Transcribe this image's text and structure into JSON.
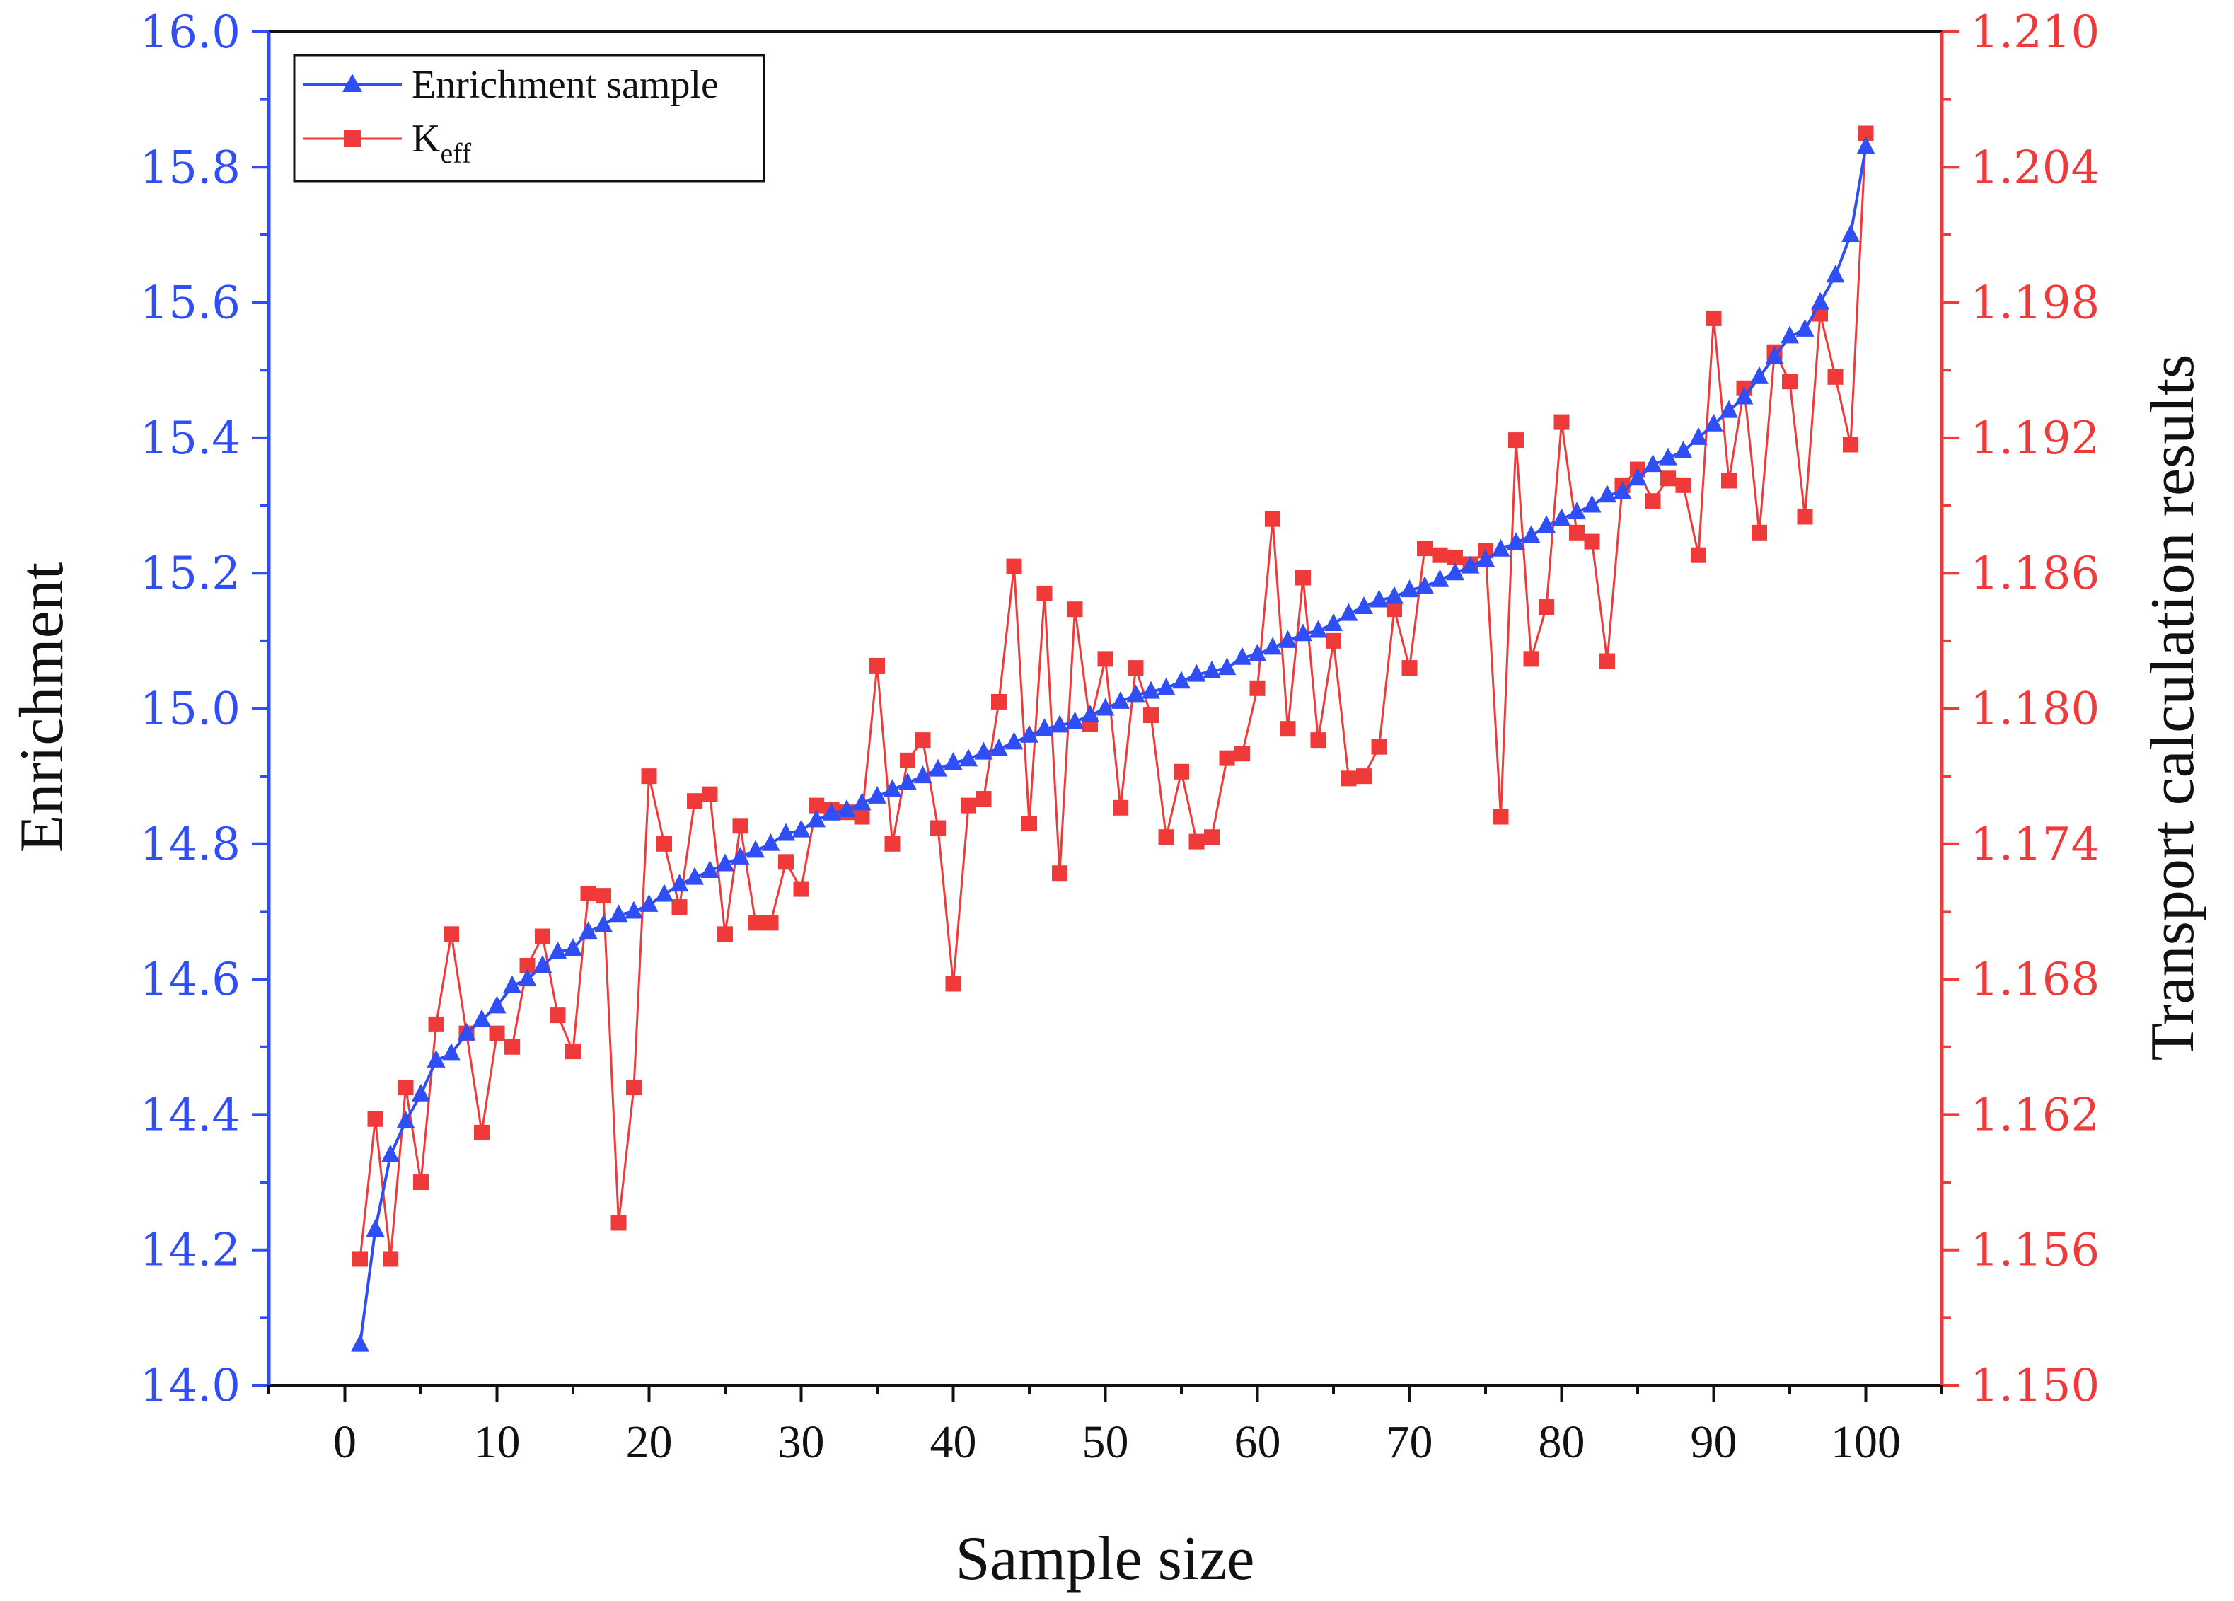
{
  "chart_data": {
    "type": "line",
    "xlabel": "Sample size",
    "ylabel_left": "Enrichment",
    "ylabel_right": "Transport calculation results",
    "xlim": [
      -5,
      105
    ],
    "ylim_left": [
      14.0,
      16.0
    ],
    "ylim_right": [
      1.15,
      1.21
    ],
    "x_ticks": [
      0,
      10,
      20,
      30,
      40,
      50,
      60,
      70,
      80,
      90,
      100
    ],
    "x_tick_labels": [
      "0",
      "10",
      "20",
      "30",
      "40",
      "50",
      "60",
      "70",
      "80",
      "90",
      "100"
    ],
    "y_left_ticks": [
      14.0,
      14.2,
      14.4,
      14.6,
      14.8,
      15.0,
      15.2,
      15.4,
      15.6,
      15.8,
      16.0
    ],
    "y_left_tick_labels": [
      "14.0",
      "14.2",
      "14.4",
      "14.6",
      "14.8",
      "15.0",
      "15.2",
      "15.4",
      "15.6",
      "15.8",
      "16.0"
    ],
    "y_right_ticks": [
      1.15,
      1.156,
      1.162,
      1.168,
      1.174,
      1.18,
      1.186,
      1.192,
      1.198,
      1.204,
      1.21
    ],
    "y_right_tick_labels": [
      "1.150",
      "1.156",
      "1.162",
      "1.168",
      "1.174",
      "1.180",
      "1.186",
      "1.192",
      "1.198",
      "1.204",
      "1.210"
    ],
    "legend_position": "top-left",
    "legend": [
      {
        "label": "Enrichment sample",
        "sub": ""
      },
      {
        "label": "K",
        "sub": "eff"
      }
    ],
    "series": [
      {
        "name": "Enrichment sample",
        "axis": "left",
        "color": "#2f4ef5",
        "marker": "triangle",
        "x": [
          1,
          2,
          3,
          4,
          5,
          6,
          7,
          8,
          9,
          10,
          11,
          12,
          13,
          14,
          15,
          16,
          17,
          18,
          19,
          20,
          21,
          22,
          23,
          24,
          25,
          26,
          27,
          28,
          29,
          30,
          31,
          32,
          33,
          34,
          35,
          36,
          37,
          38,
          39,
          40,
          41,
          42,
          43,
          44,
          45,
          46,
          47,
          48,
          49,
          50,
          51,
          52,
          53,
          54,
          55,
          56,
          57,
          58,
          59,
          60,
          61,
          62,
          63,
          64,
          65,
          66,
          67,
          68,
          69,
          70,
          71,
          72,
          73,
          74,
          75,
          76,
          77,
          78,
          79,
          80,
          81,
          82,
          83,
          84,
          85,
          86,
          87,
          88,
          89,
          90,
          91,
          92,
          93,
          94,
          95,
          96,
          97,
          98,
          99,
          100
        ],
        "values": [
          14.06,
          14.23,
          14.34,
          14.39,
          14.43,
          14.48,
          14.49,
          14.52,
          14.54,
          14.56,
          14.59,
          14.6,
          14.62,
          14.64,
          14.645,
          14.67,
          14.68,
          14.695,
          14.7,
          14.71,
          14.725,
          14.74,
          14.75,
          14.76,
          14.77,
          14.78,
          14.79,
          14.8,
          14.815,
          14.82,
          14.835,
          14.845,
          14.85,
          14.86,
          14.87,
          14.88,
          14.89,
          14.9,
          14.91,
          14.92,
          14.925,
          14.935,
          14.94,
          14.95,
          14.96,
          14.97,
          14.975,
          14.98,
          14.99,
          15.0,
          15.01,
          15.02,
          15.025,
          15.03,
          15.04,
          15.05,
          15.055,
          15.06,
          15.075,
          15.08,
          15.09,
          15.1,
          15.11,
          15.115,
          15.125,
          15.14,
          15.15,
          15.16,
          15.165,
          15.175,
          15.18,
          15.19,
          15.2,
          15.21,
          15.22,
          15.235,
          15.245,
          15.255,
          15.27,
          15.28,
          15.29,
          15.3,
          15.315,
          15.32,
          15.34,
          15.36,
          15.37,
          15.38,
          15.4,
          15.42,
          15.44,
          15.46,
          15.49,
          15.52,
          15.55,
          15.56,
          15.6,
          15.64,
          15.7,
          15.83
        ]
      },
      {
        "name": "Keff",
        "axis": "right",
        "color": "#f03a3a",
        "marker": "square",
        "x": [
          1,
          2,
          3,
          4,
          5,
          6,
          7,
          8,
          9,
          10,
          11,
          12,
          13,
          14,
          15,
          16,
          17,
          18,
          19,
          20,
          21,
          22,
          23,
          24,
          25,
          26,
          27,
          28,
          29,
          30,
          31,
          32,
          33,
          34,
          35,
          36,
          37,
          38,
          39,
          40,
          41,
          42,
          43,
          44,
          45,
          46,
          47,
          48,
          49,
          50,
          51,
          52,
          53,
          54,
          55,
          56,
          57,
          58,
          59,
          60,
          61,
          62,
          63,
          64,
          65,
          66,
          67,
          68,
          69,
          70,
          71,
          72,
          73,
          74,
          75,
          76,
          77,
          78,
          79,
          80,
          81,
          82,
          83,
          84,
          85,
          86,
          87,
          88,
          89,
          90,
          91,
          92,
          93,
          94,
          95,
          96,
          97,
          98,
          99,
          100
        ],
        "values": [
          1.1556,
          1.1618,
          1.1556,
          1.1632,
          1.159,
          1.166,
          1.17,
          1.1656,
          1.1612,
          1.1656,
          1.165,
          1.1686,
          1.1699,
          1.1664,
          1.1648,
          1.1718,
          1.1717,
          1.1572,
          1.1632,
          1.177,
          1.174,
          1.1712,
          1.1759,
          1.1762,
          1.17,
          1.1748,
          1.1705,
          1.1705,
          1.1732,
          1.172,
          1.1757,
          1.1755,
          1.1754,
          1.1752,
          1.1819,
          1.174,
          1.1777,
          1.1786,
          1.1747,
          1.1678,
          1.1757,
          1.176,
          1.1803,
          1.1863,
          1.1749,
          1.1851,
          1.1727,
          1.1844,
          1.1793,
          1.1822,
          1.1756,
          1.1818,
          1.1797,
          1.1743,
          1.1772,
          1.1741,
          1.1743,
          1.1778,
          1.178,
          1.1809,
          1.1884,
          1.1791,
          1.1858,
          1.1786,
          1.183,
          1.1769,
          1.177,
          1.1783,
          1.1844,
          1.1818,
          1.1871,
          1.1868,
          1.1867,
          1.1864,
          1.187,
          1.1752,
          1.1919,
          1.1822,
          1.1845,
          1.1927,
          1.1878,
          1.1874,
          1.1821,
          1.1899,
          1.1906,
          1.1892,
          1.1902,
          1.1899,
          1.1868,
          1.1973,
          1.1901,
          1.1942,
          1.1878,
          1.1958,
          1.1945,
          1.1885,
          1.1975,
          1.1947,
          1.1917,
          1.2055
        ]
      }
    ]
  }
}
